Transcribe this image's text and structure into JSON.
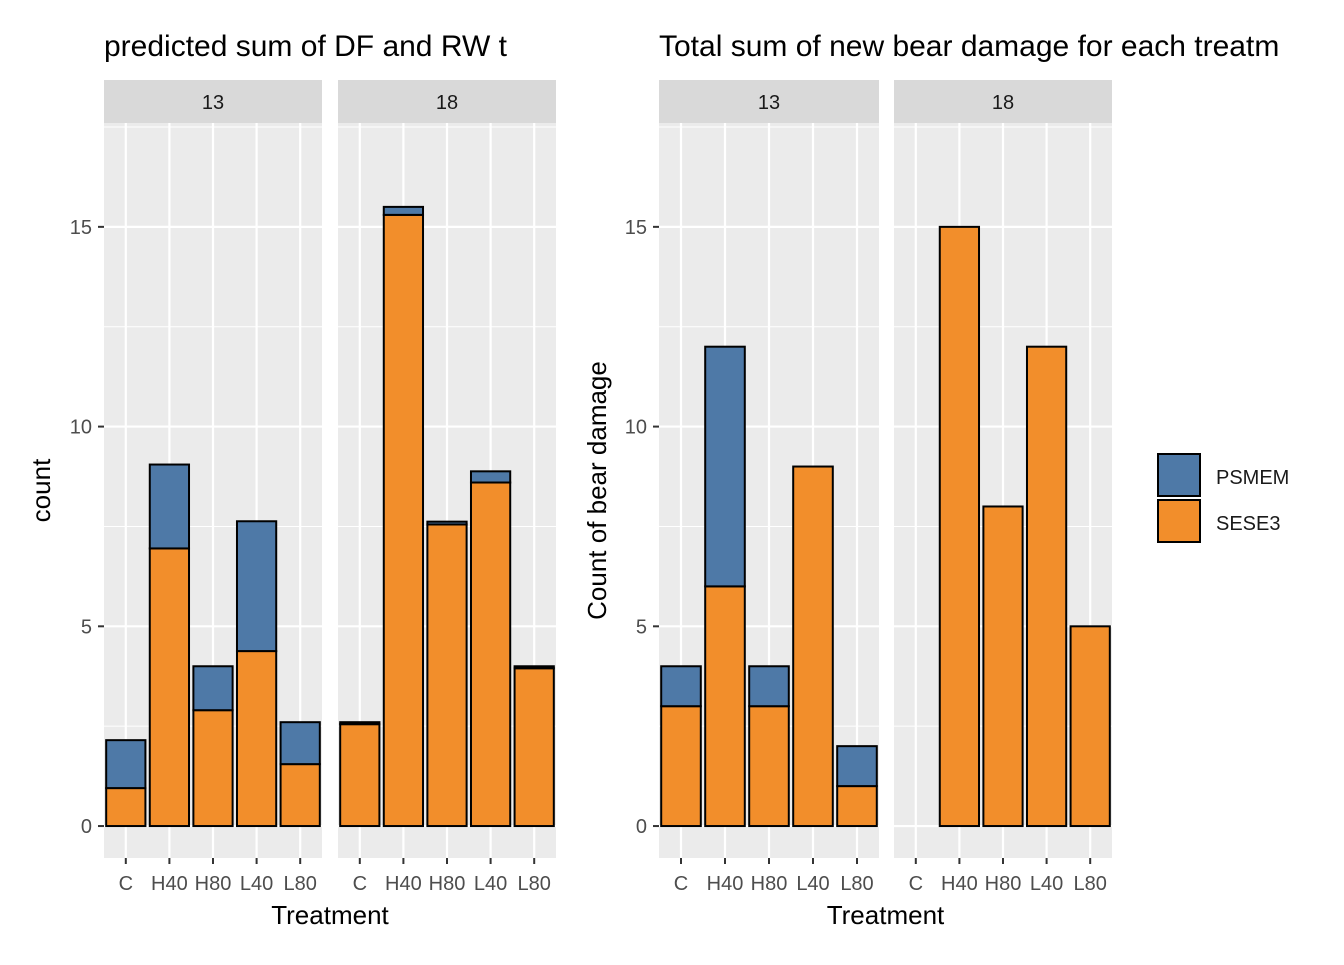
{
  "colors": {
    "PSMEM": "#4e79a7",
    "SESE3": "#f28e2b",
    "panel_bg": "#ebebeb",
    "strip_bg": "#d9d9d9",
    "grid": "#ffffff",
    "text": "#4d4d4d"
  },
  "legend": {
    "position": "right",
    "entries": [
      "PSMEM",
      "SESE3"
    ]
  },
  "chart_data": [
    {
      "type": "bar",
      "stacked": true,
      "title": "predicted sum of DF and RW t",
      "xlabel": "Treatment",
      "ylabel": "count",
      "ylim": [
        -0.8,
        17.6
      ],
      "yticks": [
        0,
        5,
        10,
        15
      ],
      "grid": true,
      "categories": [
        "C",
        "H40",
        "H80",
        "L40",
        "L80"
      ],
      "facets": [
        {
          "label": "13",
          "series": [
            {
              "name": "SESE3",
              "values": [
                0.95,
                6.95,
                2.9,
                4.38,
                1.55
              ]
            },
            {
              "name": "PSMEM",
              "values": [
                1.2,
                2.1,
                1.1,
                3.25,
                1.05
              ]
            }
          ]
        },
        {
          "label": "18",
          "series": [
            {
              "name": "SESE3",
              "values": [
                2.55,
                15.3,
                7.55,
                8.6,
                3.95
              ]
            },
            {
              "name": "PSMEM",
              "values": [
                0.05,
                0.2,
                0.07,
                0.28,
                0.05
              ]
            }
          ]
        }
      ]
    },
    {
      "type": "bar",
      "stacked": true,
      "title": "Total sum of new bear damage for each treatm",
      "xlabel": "Treatment",
      "ylabel": "Count of bear damage",
      "ylim": [
        -0.8,
        17.6
      ],
      "yticks": [
        0,
        5,
        10,
        15
      ],
      "grid": true,
      "categories": [
        "C",
        "H40",
        "H80",
        "L40",
        "L80"
      ],
      "facets": [
        {
          "label": "13",
          "series": [
            {
              "name": "SESE3",
              "values": [
                3,
                6,
                3,
                9,
                1
              ]
            },
            {
              "name": "PSMEM",
              "values": [
                1,
                6,
                1,
                0,
                1
              ]
            }
          ]
        },
        {
          "label": "18",
          "series": [
            {
              "name": "SESE3",
              "values": [
                0,
                15,
                8,
                12,
                5
              ]
            },
            {
              "name": "PSMEM",
              "values": [
                0,
                0,
                0,
                0,
                0
              ]
            }
          ]
        }
      ]
    }
  ]
}
